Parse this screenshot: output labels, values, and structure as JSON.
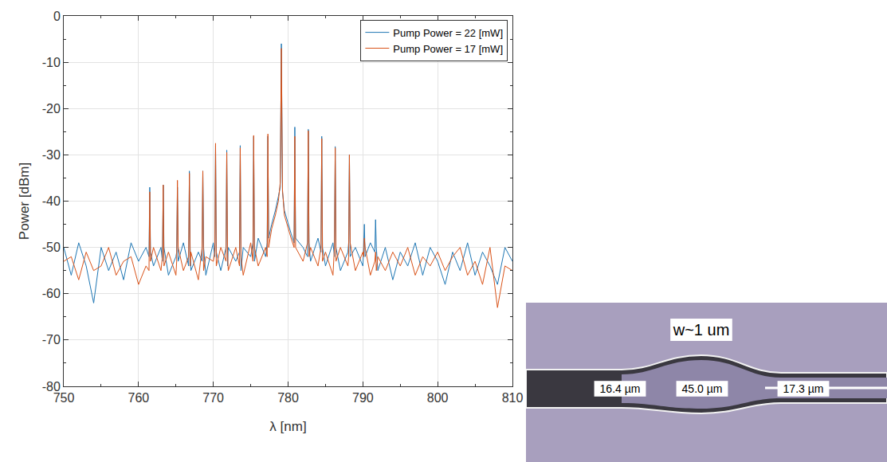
{
  "chart_data": {
    "type": "line",
    "x_label": "λ [nm]",
    "y_label": "Power [dBm]",
    "xlim": [
      750,
      810
    ],
    "ylim": [
      -80,
      0
    ],
    "xticks": [
      750,
      760,
      770,
      780,
      790,
      800,
      810
    ],
    "yticks": [
      -80,
      -70,
      -60,
      -50,
      -40,
      -30,
      -20,
      -10,
      0
    ],
    "grid": true,
    "legend": "upper right",
    "x": [
      750,
      751,
      752,
      753,
      754,
      755,
      756,
      757,
      758,
      759,
      760,
      761,
      761.4,
      761.5,
      761.6,
      762,
      763,
      763.2,
      763.3,
      763.4,
      764,
      765,
      765.1,
      765.2,
      765.3,
      766,
      766.7,
      766.8,
      766.9,
      767,
      768,
      768.5,
      768.6,
      768.7,
      769,
      770,
      770.2,
      770.3,
      770.4,
      771,
      771.7,
      771.8,
      771.9,
      772,
      773,
      773.5,
      773.6,
      773.7,
      774,
      775,
      775.3,
      775.4,
      775.5,
      776,
      777,
      777.2,
      777.3,
      777.4,
      777.8,
      778.3,
      778.7,
      778.95,
      779.1,
      779.25,
      779.5,
      780,
      780.4,
      780.8,
      780.9,
      781,
      782,
      782.6,
      782.7,
      782.8,
      783,
      784,
      784.4,
      784.5,
      784.6,
      785,
      786,
      786.2,
      786.3,
      786.4,
      787,
      788,
      788.1,
      788.2,
      788.3,
      789,
      790,
      790.1,
      790.2,
      790.3,
      791,
      791.6,
      791.7,
      791.8,
      792,
      793,
      794,
      795,
      796,
      797,
      798,
      799,
      800,
      801,
      802,
      803,
      804,
      805,
      806,
      807,
      808,
      809,
      810
    ],
    "series": [
      {
        "name": "Pump Power = 22 [mW]",
        "color": "#1f77b4",
        "values": [
          -50,
          -56,
          -49,
          -54,
          -62,
          -50,
          -55,
          -51,
          -57,
          -49,
          -53,
          -50,
          -52,
          -37,
          -51,
          -54,
          -50,
          -53,
          -36.5,
          -50,
          -56,
          -52,
          -51,
          -37,
          -53,
          -49,
          -54,
          -33.5,
          -50,
          -55,
          -51,
          -53,
          -33.5,
          -50,
          -56,
          -49,
          -52,
          -28,
          -51,
          -55,
          -50,
          -29,
          -54,
          -50,
          -53,
          -51,
          -28,
          -55,
          -50,
          -52,
          -49,
          -26,
          -53,
          -48,
          -52,
          -49,
          -26,
          -48,
          -45,
          -42,
          -39,
          -37,
          -6,
          -38,
          -42,
          -45,
          -47,
          -49,
          -24,
          -48,
          -50,
          -52,
          -24.5,
          -49,
          -53,
          -48,
          -51,
          -26,
          -50,
          -54,
          -49,
          -52,
          -28.2,
          -50,
          -55,
          -51,
          -49,
          -30,
          -52,
          -50,
          -54,
          -50,
          -45,
          -52,
          -49,
          -51,
          -44,
          -50,
          -55,
          -50,
          -57,
          -51,
          -54,
          -49,
          -56,
          -50,
          -53,
          -58,
          -51,
          -55,
          -49,
          -56,
          -51,
          -54,
          -58,
          -50,
          -53
        ]
      },
      {
        "name": "Pump Power = 17 [mW]",
        "color": "#d95319",
        "values": [
          -53,
          -52,
          -57,
          -51,
          -55,
          -54,
          -50,
          -56,
          -53,
          -52,
          -58,
          -54,
          -55,
          -38,
          -53,
          -50,
          -55,
          -52,
          -36.5,
          -54,
          -51,
          -56,
          -53,
          -35.5,
          -50,
          -55,
          -52,
          -34,
          -54,
          -51,
          -57,
          -50,
          -33.5,
          -55,
          -52,
          -53,
          -51,
          -27.5,
          -54,
          -50,
          -53,
          -29.5,
          -51,
          -55,
          -50,
          -54,
          -28.5,
          -52,
          -56,
          -49,
          -53,
          -25.8,
          -50,
          -54,
          -50,
          -52,
          -25.5,
          -50,
          -46,
          -43,
          -40,
          -36,
          -7,
          -37.5,
          -43,
          -46,
          -48,
          -50,
          -26,
          -50,
          -53,
          -49,
          -24.8,
          -52,
          -50,
          -54,
          -50,
          -26.5,
          -53,
          -51,
          -56,
          -50,
          -28.5,
          -53,
          -50,
          -54,
          -52,
          -30,
          -49,
          -55,
          -51,
          -52,
          -48,
          -50,
          -56,
          -53,
          -51,
          -55,
          -52,
          -55,
          -51,
          -54,
          -50,
          -56,
          -52,
          -54,
          -51,
          -55,
          -52,
          -50,
          -56,
          -53,
          -58,
          -50,
          -63,
          -54,
          -55
        ]
      }
    ]
  },
  "inset_image": {
    "label": "w~1 um",
    "measurements": [
      "16.4 µm",
      "45.0 µm",
      "17.3 µm"
    ]
  }
}
